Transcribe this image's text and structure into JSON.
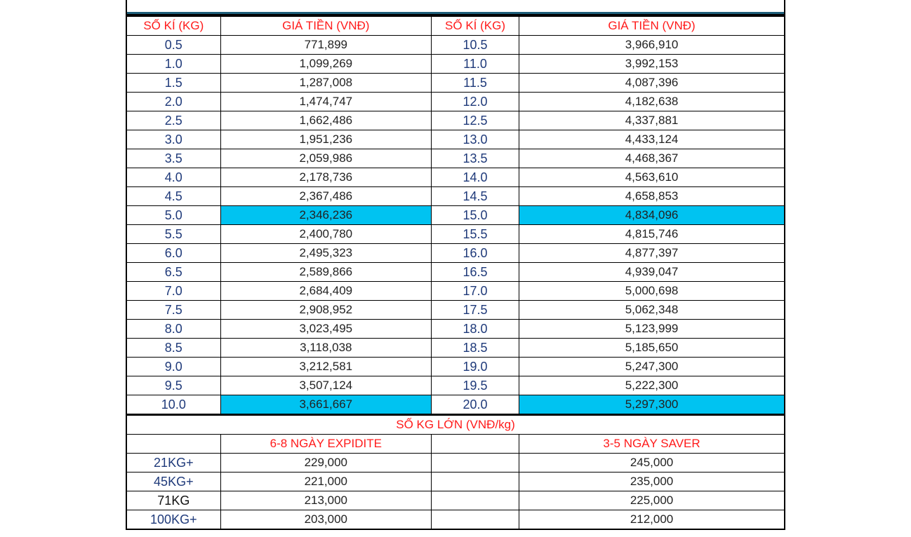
{
  "headers": {
    "weight": "SỐ KÍ (KG)",
    "price": "GIÁ TIỀN (VNĐ)",
    "weight2": "SỐ KÍ (KG)",
    "price2": "GIÁ TIỀN (VNĐ)"
  },
  "rows": [
    {
      "w1": "0.5",
      "p1": "771,899",
      "w2": "10.5",
      "p2": "3,966,910"
    },
    {
      "w1": "1.0",
      "p1": "1,099,269",
      "w2": "11.0",
      "p2": "3,992,153"
    },
    {
      "w1": "1.5",
      "p1": "1,287,008",
      "w2": "11.5",
      "p2": "4,087,396"
    },
    {
      "w1": "2.0",
      "p1": "1,474,747",
      "w2": "12.0",
      "p2": "4,182,638"
    },
    {
      "w1": "2.5",
      "p1": "1,662,486",
      "w2": "12.5",
      "p2": "4,337,881"
    },
    {
      "w1": "3.0",
      "p1": "1,951,236",
      "w2": "13.0",
      "p2": "4,433,124"
    },
    {
      "w1": "3.5",
      "p1": "2,059,986",
      "w2": "13.5",
      "p2": "4,468,367"
    },
    {
      "w1": "4.0",
      "p1": "2,178,736",
      "w2": "14.0",
      "p2": "4,563,610"
    },
    {
      "w1": "4.5",
      "p1": "2,367,486",
      "w2": "14.5",
      "p2": "4,658,853"
    },
    {
      "w1": "5.0",
      "p1": "2,346,236",
      "w2": "15.0",
      "p2": "4,834,096"
    },
    {
      "w1": "5.5",
      "p1": "2,400,780",
      "w2": "15.5",
      "p2": "4,815,746"
    },
    {
      "w1": "6.0",
      "p1": "2,495,323",
      "w2": "16.0",
      "p2": "4,877,397"
    },
    {
      "w1": "6.5",
      "p1": "2,589,866",
      "w2": "16.5",
      "p2": "4,939,047"
    },
    {
      "w1": "7.0",
      "p1": "2,684,409",
      "w2": "17.0",
      "p2": "5,000,698"
    },
    {
      "w1": "7.5",
      "p1": "2,908,952",
      "w2": "17.5",
      "p2": "5,062,348"
    },
    {
      "w1": "8.0",
      "p1": "3,023,495",
      "w2": "18.0",
      "p2": "5,123,999"
    },
    {
      "w1": "8.5",
      "p1": "3,118,038",
      "w2": "18.5",
      "p2": "5,185,650"
    },
    {
      "w1": "9.0",
      "p1": "3,212,581",
      "w2": "19.0",
      "p2": "5,247,300"
    },
    {
      "w1": "9.5",
      "p1": "3,507,124",
      "w2": "19.5",
      "p2": "5,222,300"
    },
    {
      "w1": "10.0",
      "p1": "3,661,667",
      "w2": "20.0",
      "p2": "5,297,300"
    }
  ],
  "highlight_color": "#00c3f1",
  "large": {
    "title": "SỐ KG LỚN (VNĐ/kg)",
    "col_express": "6-8 NGÀY EXPIDITE",
    "col_saver": "3-5 NGÀY SAVER",
    "rows": [
      {
        "kg": "21KG+",
        "express": "229,000",
        "saver": "245,000"
      },
      {
        "kg": "45KG+",
        "express": "221,000",
        "saver": "235,000"
      },
      {
        "kg": "71KG",
        "express": "213,000",
        "saver": "225,000"
      },
      {
        "kg": "100KG+",
        "express": "203,000",
        "saver": "212,000"
      }
    ]
  }
}
